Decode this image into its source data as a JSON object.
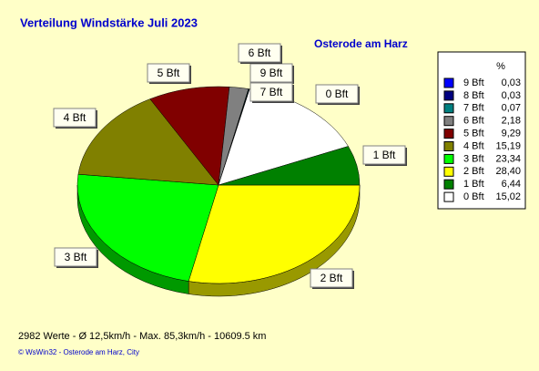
{
  "chart_data": {
    "type": "pie",
    "title": "Verteilung Windstärke  Juli 2023",
    "subtitle": "Osterode am Harz",
    "legend_header": "%",
    "categories": [
      "9 Bft",
      "8 Bft",
      "7 Bft",
      "6 Bft",
      "5 Bft",
      "4 Bft",
      "3 Bft",
      "2 Bft",
      "1 Bft",
      "0 Bft"
    ],
    "values": [
      0.03,
      0.03,
      0.07,
      2.18,
      9.29,
      15.19,
      23.34,
      28.4,
      6.44,
      15.02
    ],
    "value_labels": [
      "0,03",
      "0,03",
      "0,07",
      "2,18",
      "9,29",
      "15,19",
      "23,34",
      "28,40",
      "6,44",
      "15,02"
    ],
    "colors": [
      "#0000ff",
      "#000080",
      "#008080",
      "#808080",
      "#800000",
      "#808000",
      "#00ff00",
      "#ffff00",
      "#008000",
      "#ffffff"
    ],
    "legend": "right",
    "footer": "2982 Werte   -   Ø 12,5km/h  -  Max. 85,3km/h   -   10609.5 km",
    "credit": "© WsWin32  -  Osterode am Harz, City"
  }
}
